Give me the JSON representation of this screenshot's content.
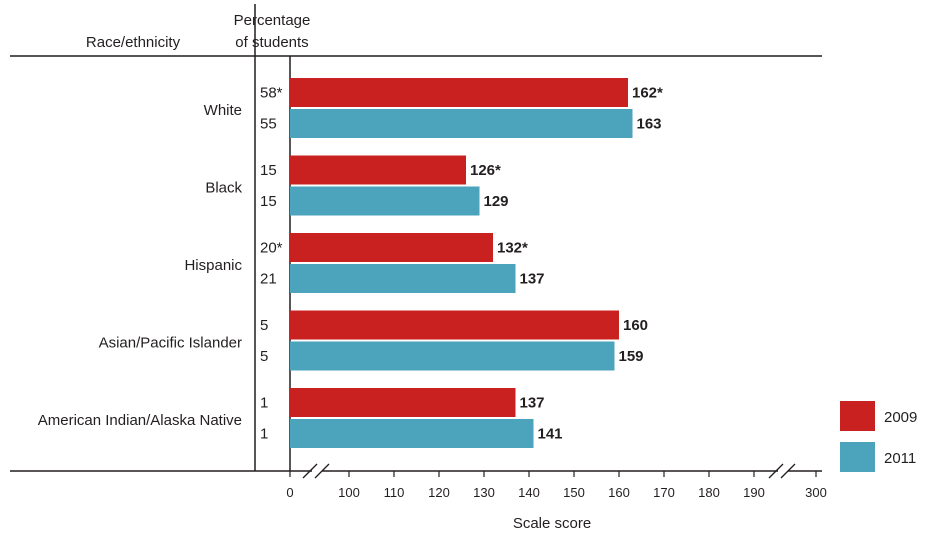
{
  "chart_data": {
    "type": "bar",
    "orientation": "horizontal",
    "header_category": "Race/ethnicity",
    "header_percent_line1": "Percentage",
    "header_percent_line2": "of students",
    "xlabel": "Scale score",
    "xaxis_breaks": true,
    "xticks": [
      "0",
      "100",
      "110",
      "120",
      "130",
      "140",
      "150",
      "160",
      "170",
      "180",
      "190",
      "300"
    ],
    "categories": [
      "White",
      "Black",
      "Hispanic",
      "Asian/Pacific Islander",
      "American Indian/Alaska Native"
    ],
    "series": [
      {
        "name": "2009",
        "color": "#c8211f",
        "values": [
          162,
          126,
          132,
          160,
          137
        ],
        "value_labels": [
          "162*",
          "126*",
          "132*",
          "160",
          "137"
        ],
        "percentages": [
          "58*",
          "15",
          "20*",
          "5",
          "1"
        ]
      },
      {
        "name": "2011",
        "color": "#4ba3bc",
        "values": [
          163,
          129,
          137,
          159,
          141
        ],
        "value_labels": [
          "163",
          "129",
          "137",
          "159",
          "141"
        ],
        "percentages": [
          "55",
          "15",
          "21",
          "5",
          "1"
        ]
      }
    ],
    "legend_position": "bottom-right",
    "grid": false
  }
}
